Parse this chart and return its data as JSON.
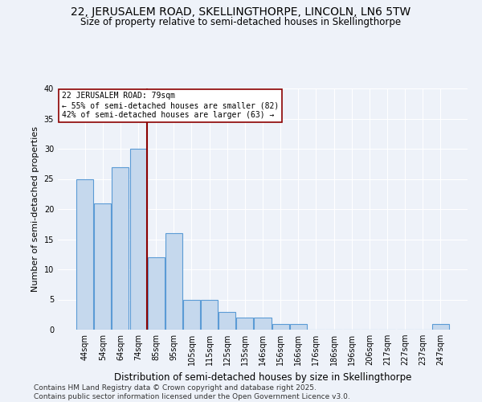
{
  "title": "22, JERUSALEM ROAD, SKELLINGTHORPE, LINCOLN, LN6 5TW",
  "subtitle": "Size of property relative to semi-detached houses in Skellingthorpe",
  "xlabel": "Distribution of semi-detached houses by size in Skellingthorpe",
  "ylabel": "Number of semi-detached properties",
  "categories": [
    "44sqm",
    "54sqm",
    "64sqm",
    "74sqm",
    "85sqm",
    "95sqm",
    "105sqm",
    "115sqm",
    "125sqm",
    "135sqm",
    "146sqm",
    "156sqm",
    "166sqm",
    "176sqm",
    "186sqm",
    "196sqm",
    "206sqm",
    "217sqm",
    "227sqm",
    "237sqm",
    "247sqm"
  ],
  "values": [
    25,
    21,
    27,
    30,
    12,
    16,
    5,
    5,
    3,
    2,
    2,
    1,
    1,
    0,
    0,
    0,
    0,
    0,
    0,
    0,
    1
  ],
  "bar_color": "#c5d8ed",
  "bar_edge_color": "#5b9bd5",
  "vline_color": "#8b0000",
  "annotation_text": "22 JERUSALEM ROAD: 79sqm\n← 55% of semi-detached houses are smaller (82)\n42% of semi-detached houses are larger (63) →",
  "annotation_box_color": "#ffffff",
  "annotation_box_edge": "#8b0000",
  "ylim": [
    0,
    40
  ],
  "yticks": [
    0,
    5,
    10,
    15,
    20,
    25,
    30,
    35,
    40
  ],
  "background_color": "#eef2f9",
  "grid_color": "#ffffff",
  "footer": "Contains HM Land Registry data © Crown copyright and database right 2025.\nContains public sector information licensed under the Open Government Licence v3.0.",
  "title_fontsize": 10,
  "subtitle_fontsize": 8.5,
  "xlabel_fontsize": 8.5,
  "ylabel_fontsize": 8,
  "footer_fontsize": 6.5,
  "annotation_fontsize": 7,
  "tick_fontsize": 7
}
